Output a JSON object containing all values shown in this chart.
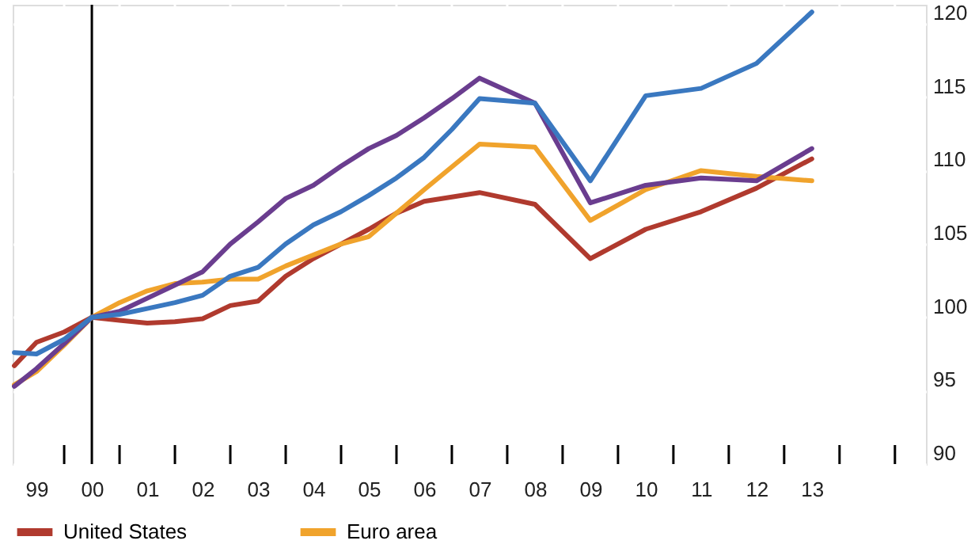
{
  "chart_data": {
    "type": "line",
    "xlim": [
      1998.57,
      2015.06
    ],
    "ylim": [
      90,
      121.3
    ],
    "xticks": [
      {
        "value": 1999,
        "label": "99"
      },
      {
        "value": 2000,
        "label": "00"
      },
      {
        "value": 2001,
        "label": "01"
      },
      {
        "value": 2002,
        "label": "02"
      },
      {
        "value": 2003,
        "label": "03"
      },
      {
        "value": 2004,
        "label": "04"
      },
      {
        "value": 2005,
        "label": "05"
      },
      {
        "value": 2006,
        "label": "06"
      },
      {
        "value": 2007,
        "label": "07"
      },
      {
        "value": 2008,
        "label": "08"
      },
      {
        "value": 2009,
        "label": "09"
      },
      {
        "value": 2010,
        "label": "10"
      },
      {
        "value": 2011,
        "label": "11"
      },
      {
        "value": 2012,
        "label": "12"
      },
      {
        "value": 2013,
        "label": "13"
      },
      {
        "value": 1999.5,
        "label": null
      },
      {
        "value": 2000.5,
        "label": null
      },
      {
        "value": 2001.5,
        "label": null
      },
      {
        "value": 2002.5,
        "label": null
      },
      {
        "value": 2003.5,
        "label": null
      },
      {
        "value": 2004.5,
        "label": null
      },
      {
        "value": 2005.5,
        "label": null
      },
      {
        "value": 2006.5,
        "label": null
      },
      {
        "value": 2007.5,
        "label": null
      },
      {
        "value": 2008.5,
        "label": null
      },
      {
        "value": 2009.5,
        "label": null
      },
      {
        "value": 2010.5,
        "label": null
      },
      {
        "value": 2011.5,
        "label": null
      },
      {
        "value": 2012.5,
        "label": null
      },
      {
        "value": 2013.5,
        "label": null
      },
      {
        "value": 2014.5,
        "label": null
      }
    ],
    "yticks": [
      90,
      95,
      100,
      105,
      110,
      115,
      120
    ],
    "grid": true,
    "legend": "bottom left",
    "line_style": "solid",
    "marker": "none",
    "ref_lines": [
      {
        "axis": "x",
        "value": 2000,
        "color": "#000000"
      }
    ],
    "series": [
      {
        "name": "United States",
        "color": "#b03a2e",
        "x": [
          1998.6,
          1999,
          1999.5,
          2000,
          2000.5,
          2001,
          2001.5,
          2002,
          2002.5,
          2003,
          2003.5,
          2004,
          2004.5,
          2005,
          2005.5,
          2006,
          2007,
          2008,
          2009,
          2010,
          2011,
          2012,
          2013
        ],
        "values": [
          96.7,
          98.3,
          99.0,
          100,
          99.8,
          99.6,
          99.7,
          99.9,
          100.8,
          101.1,
          102.8,
          104.0,
          105.0,
          106.0,
          107.1,
          107.9,
          108.5,
          107.7,
          104.0,
          106.0,
          107.2,
          108.8,
          110.8
        ]
      },
      {
        "name": "Euro area",
        "color": "#f0a32c",
        "x": [
          1998.6,
          1999,
          1999.5,
          2000,
          2000.5,
          2001,
          2001.5,
          2002,
          2002.5,
          2003,
          2003.5,
          2004.5,
          2005,
          2005.5,
          2006,
          2007,
          2008,
          2009,
          2010,
          2011,
          2012,
          2013
        ],
        "values": [
          95.4,
          96.3,
          98.1,
          100,
          101.0,
          101.8,
          102.3,
          102.4,
          102.6,
          102.6,
          103.5,
          105.0,
          105.5,
          107.1,
          108.7,
          111.8,
          111.6,
          106.6,
          108.7,
          110.0,
          109.6,
          109.3
        ]
      },
      {
        "color": "#6a3d8f",
        "x": [
          1998.6,
          1999,
          1999.5,
          2000,
          2000.5,
          2001,
          2001.5,
          2002,
          2002.5,
          2003,
          2003.5,
          2004,
          2004.5,
          2005,
          2005.5,
          2006,
          2006.5,
          2007,
          2008,
          2009,
          2010,
          2011,
          2012,
          2013
        ],
        "values": [
          95.3,
          96.5,
          98.2,
          100,
          100.4,
          101.3,
          102.2,
          103.1,
          105.0,
          106.5,
          108.1,
          109.0,
          110.3,
          111.5,
          112.4,
          113.6,
          114.9,
          116.3,
          114.6,
          107.8,
          109.0,
          109.5,
          109.3,
          111.5
        ]
      },
      {
        "color": "#3a78c0",
        "x": [
          1998.6,
          1999,
          1999.5,
          2000,
          2000.5,
          2001,
          2001.5,
          2002,
          2002.5,
          2003,
          2003.5,
          2004,
          2004.5,
          2005,
          2005.5,
          2006,
          2006.5,
          2007,
          2008,
          2009,
          2010,
          2011,
          2012,
          2013
        ],
        "values": [
          97.6,
          97.5,
          98.5,
          100,
          100.2,
          100.6,
          101.0,
          101.5,
          102.8,
          103.4,
          105.0,
          106.3,
          107.2,
          108.3,
          109.5,
          110.9,
          112.8,
          114.9,
          114.6,
          109.3,
          115.1,
          115.6,
          117.3,
          120.8
        ]
      }
    ]
  }
}
